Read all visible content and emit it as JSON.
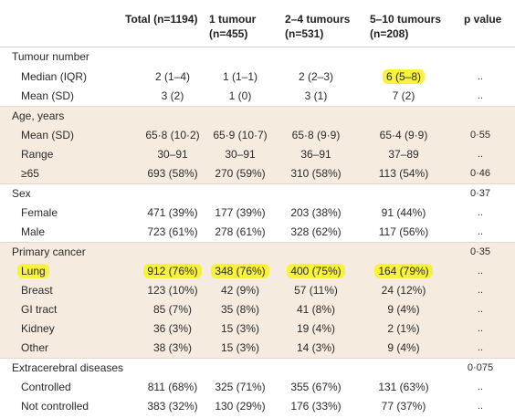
{
  "header": {
    "col_total": "Total (n=1194)",
    "col_one_line1": "1 tumour",
    "col_one_line2": "(n=455)",
    "col_two_line1": "2–4 tumours",
    "col_two_line2": "(n=531)",
    "col_five_line1": "5–10 tumours",
    "col_five_line2": "(n=208)",
    "col_p": "p value"
  },
  "rows": [
    {
      "label": "Tumour number",
      "total": "",
      "one": "",
      "two": "",
      "five": "",
      "p": ""
    },
    {
      "label": "Median (IQR)",
      "total": "2 (1–4)",
      "one": "1 (1–1)",
      "two": "2 (2–3)",
      "five": "6 (5–8)",
      "p": ".."
    },
    {
      "label": "Mean (SD)",
      "total": "3 (2)",
      "one": "1 (0)",
      "two": "3 (1)",
      "five": "7 (2)",
      "p": ".."
    },
    {
      "label": "Age, years",
      "total": "",
      "one": "",
      "two": "",
      "five": "",
      "p": ""
    },
    {
      "label": "Mean (SD)",
      "total": "65·8 (10·2)",
      "one": "65·9 (10·7)",
      "two": "65·8 (9·9)",
      "five": "65·4 (9·9)",
      "p": "0·55"
    },
    {
      "label": "Range",
      "total": "30–91",
      "one": "30–91",
      "two": "36–91",
      "five": "37–89",
      "p": ".."
    },
    {
      "label": "≥65",
      "total": "693 (58%)",
      "one": "270 (59%)",
      "two": "310 (58%)",
      "five": "113 (54%)",
      "p": "0·46"
    },
    {
      "label": "Sex",
      "total": "",
      "one": "",
      "two": "",
      "five": "",
      "p": "0·37"
    },
    {
      "label": "Female",
      "total": "471 (39%)",
      "one": "177 (39%)",
      "two": "203 (38%)",
      "five": "91 (44%)",
      "p": ".."
    },
    {
      "label": "Male",
      "total": "723 (61%)",
      "one": "278 (61%)",
      "two": "328 (62%)",
      "five": "117 (56%)",
      "p": ".."
    },
    {
      "label": "Primary cancer",
      "total": "",
      "one": "",
      "two": "",
      "five": "",
      "p": "0·35"
    },
    {
      "label": "Lung",
      "total": "912 (76%)",
      "one": "348 (76%)",
      "two": "400 (75%)",
      "five": "164 (79%)",
      "p": ".."
    },
    {
      "label": "Breast",
      "total": "123 (10%)",
      "one": "42 (9%)",
      "two": "57 (11%)",
      "five": "24 (12%)",
      "p": ".."
    },
    {
      "label": "GI tract",
      "total": "85 (7%)",
      "one": "35 (8%)",
      "two": "41 (8%)",
      "five": "9 (4%)",
      "p": ".."
    },
    {
      "label": "Kidney",
      "total": "36 (3%)",
      "one": "15 (3%)",
      "two": "19 (4%)",
      "five": "2 (1%)",
      "p": ".."
    },
    {
      "label": "Other",
      "total": "38 (3%)",
      "one": "15 (3%)",
      "two": "14 (3%)",
      "five": "9 (4%)",
      "p": ".."
    },
    {
      "label": "Extracerebral diseases",
      "total": "",
      "one": "",
      "two": "",
      "five": "",
      "p": "0·075"
    },
    {
      "label": "Controlled",
      "total": "811 (68%)",
      "one": "325 (71%)",
      "two": "355 (67%)",
      "five": "131 (63%)",
      "p": ".."
    },
    {
      "label": "Not controlled",
      "total": "383 (32%)",
      "one": "130 (29%)",
      "two": "176 (33%)",
      "five": "77 (37%)",
      "p": ".."
    }
  ],
  "colors": {
    "shade": "#f5ecdf",
    "highlight": "#f9f23a"
  }
}
